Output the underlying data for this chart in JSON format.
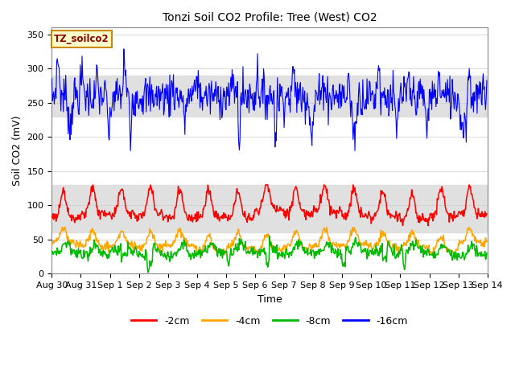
{
  "title": "Tonzi Soil CO2 Profile: Tree (West) CO2",
  "xlabel": "Time",
  "ylabel": "Soil CO2 (mV)",
  "ylim": [
    0,
    360
  ],
  "yticks": [
    0,
    50,
    100,
    150,
    200,
    250,
    300,
    350
  ],
  "num_days": 15,
  "points_per_day": 48,
  "series_labels": [
    "-2cm",
    "-4cm",
    "-8cm",
    "-16cm"
  ],
  "series_colors": [
    "#ff0000",
    "#ffa500",
    "#00bb00",
    "#0000ff"
  ],
  "legend_label": "TZ_soilco2",
  "legend_bg": "#ffffcc",
  "legend_edge": "#cc8800",
  "bg_band1": [
    230,
    290
  ],
  "bg_band2": [
    60,
    130
  ],
  "band_color": "#e0e0e0",
  "line_width": 0.8,
  "fig_bg": "#ffffff",
  "axes_bg": "#ffffff",
  "tick_fontsize": 8,
  "label_fontsize": 9,
  "title_fontsize": 10
}
